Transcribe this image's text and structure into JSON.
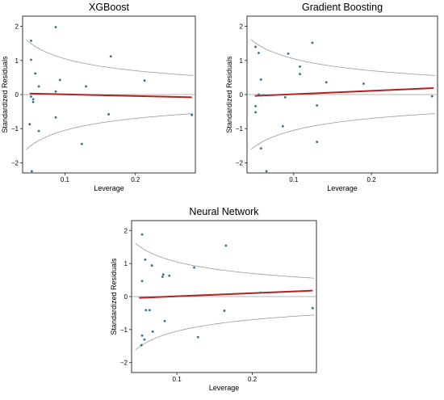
{
  "chart_data": [
    {
      "type": "scatter",
      "title": "XGBoost",
      "xlabel": "Leverage",
      "ylabel": "Standardized Residuals",
      "xlim": [
        0.04,
        0.285
      ],
      "ylim": [
        -2.3,
        2.3
      ],
      "xticks": [
        0.1,
        0.2
      ],
      "xtick_labels": [
        "0.1",
        "0.2"
      ],
      "yticks": [
        -2,
        -1,
        0,
        1,
        2
      ],
      "ytick_labels": [
        "−2",
        "−1",
        "0",
        "1",
        "2"
      ],
      "points": [
        {
          "x": 0.052,
          "y": 1.58
        },
        {
          "x": 0.052,
          "y": 1.02
        },
        {
          "x": 0.058,
          "y": 0.62
        },
        {
          "x": 0.063,
          "y": 0.24
        },
        {
          "x": 0.087,
          "y": 1.98
        },
        {
          "x": 0.093,
          "y": 0.43
        },
        {
          "x": 0.087,
          "y": 0.09
        },
        {
          "x": 0.13,
          "y": 0.24
        },
        {
          "x": 0.165,
          "y": 1.12
        },
        {
          "x": 0.213,
          "y": 0.41
        },
        {
          "x": 0.052,
          "y": -0.06
        },
        {
          "x": 0.055,
          "y": -0.14
        },
        {
          "x": 0.055,
          "y": -0.22
        },
        {
          "x": 0.05,
          "y": -0.87
        },
        {
          "x": 0.063,
          "y": -1.07
        },
        {
          "x": 0.087,
          "y": -0.67
        },
        {
          "x": 0.124,
          "y": -1.45
        },
        {
          "x": 0.162,
          "y": -0.58
        },
        {
          "x": 0.28,
          "y": -0.6
        },
        {
          "x": 0.053,
          "y": -2.25
        }
      ],
      "fit_line": {
        "x": [
          0.05,
          0.28
        ],
        "y": [
          0.03,
          -0.08
        ]
      },
      "colors": {
        "points": "#2f6e8e",
        "fit": "#b22222",
        "contour": "#9a9a9a"
      }
    },
    {
      "type": "scatter",
      "title": "Gradient Boosting",
      "xlabel": "Leverage",
      "ylabel": "Standardized Residuals",
      "xlim": [
        0.04,
        0.285
      ],
      "ylim": [
        -2.3,
        2.3
      ],
      "xticks": [
        0.1,
        0.2
      ],
      "xtick_labels": [
        "0.1",
        "0.2"
      ],
      "yticks": [
        -2,
        -1,
        0,
        1,
        2
      ],
      "ytick_labels": [
        "−2",
        "−1",
        "0",
        "1",
        "2"
      ],
      "points": [
        {
          "x": 0.051,
          "y": 1.4
        },
        {
          "x": 0.055,
          "y": 1.22
        },
        {
          "x": 0.058,
          "y": 0.44
        },
        {
          "x": 0.061,
          "y": -0.02
        },
        {
          "x": 0.051,
          "y": -0.34
        },
        {
          "x": 0.051,
          "y": -0.52
        },
        {
          "x": 0.055,
          "y": 0.0
        },
        {
          "x": 0.058,
          "y": -1.58
        },
        {
          "x": 0.065,
          "y": -2.25
        },
        {
          "x": 0.093,
          "y": 1.2
        },
        {
          "x": 0.108,
          "y": 0.82
        },
        {
          "x": 0.108,
          "y": 0.6
        },
        {
          "x": 0.089,
          "y": -0.08
        },
        {
          "x": 0.086,
          "y": -0.93
        },
        {
          "x": 0.124,
          "y": 1.52
        },
        {
          "x": 0.13,
          "y": -0.32
        },
        {
          "x": 0.142,
          "y": 0.36
        },
        {
          "x": 0.13,
          "y": -1.39
        },
        {
          "x": 0.19,
          "y": 0.32
        },
        {
          "x": 0.278,
          "y": -0.05
        }
      ],
      "fit_line": {
        "x": [
          0.05,
          0.28
        ],
        "y": [
          -0.04,
          0.19
        ]
      },
      "colors": {
        "points": "#2f6e8e",
        "fit": "#b22222",
        "contour": "#9a9a9a"
      }
    },
    {
      "type": "scatter",
      "title": "Neural Network",
      "xlabel": "Leverage",
      "ylabel": "Standardized Residuals",
      "xlim": [
        0.04,
        0.285
      ],
      "ylim": [
        -2.3,
        2.3
      ],
      "xticks": [
        0.1,
        0.2
      ],
      "xtick_labels": [
        "0.1",
        "0.2"
      ],
      "yticks": [
        -2,
        -1,
        0,
        1,
        2
      ],
      "ytick_labels": [
        "−2",
        "−1",
        "0",
        "1",
        "2"
      ],
      "points": [
        {
          "x": 0.054,
          "y": 1.88
        },
        {
          "x": 0.058,
          "y": 1.12
        },
        {
          "x": 0.067,
          "y": 0.94
        },
        {
          "x": 0.054,
          "y": 0.47
        },
        {
          "x": 0.081,
          "y": 0.6
        },
        {
          "x": 0.082,
          "y": 0.67
        },
        {
          "x": 0.09,
          "y": 0.63
        },
        {
          "x": 0.123,
          "y": 0.88
        },
        {
          "x": 0.165,
          "y": 1.54
        },
        {
          "x": 0.059,
          "y": -0.41
        },
        {
          "x": 0.064,
          "y": -0.41
        },
        {
          "x": 0.084,
          "y": -0.74
        },
        {
          "x": 0.068,
          "y": -1.06
        },
        {
          "x": 0.054,
          "y": -1.18
        },
        {
          "x": 0.057,
          "y": -1.3
        },
        {
          "x": 0.053,
          "y": -1.47
        },
        {
          "x": 0.128,
          "y": -1.23
        },
        {
          "x": 0.163,
          "y": -0.43
        },
        {
          "x": 0.211,
          "y": 0.12
        },
        {
          "x": 0.28,
          "y": -0.35
        }
      ],
      "fit_line": {
        "x": [
          0.05,
          0.28
        ],
        "y": [
          -0.04,
          0.18
        ]
      },
      "colors": {
        "points": "#2f6e8e",
        "fit": "#b22222",
        "contour": "#9a9a9a"
      }
    }
  ]
}
